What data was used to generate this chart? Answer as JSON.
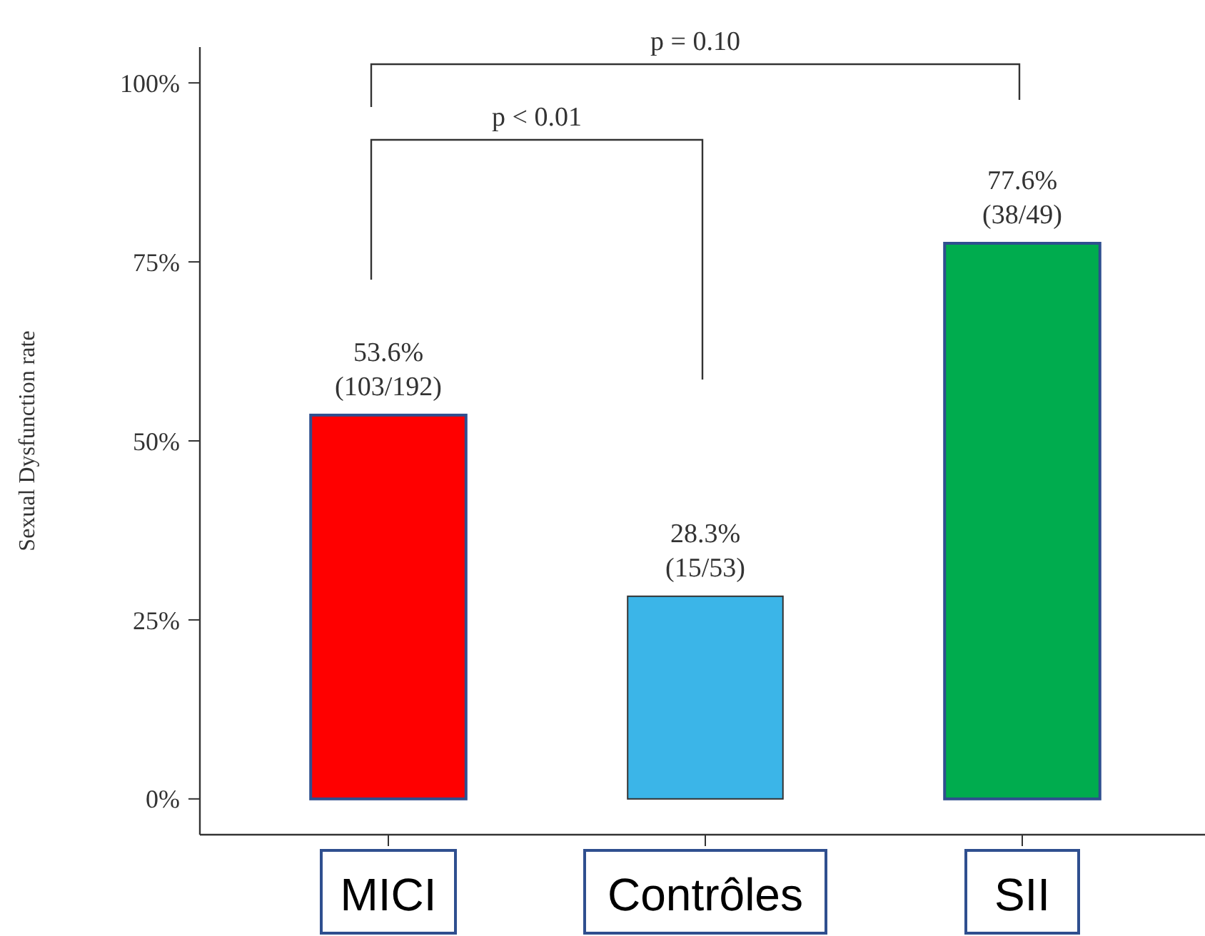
{
  "chart_data": {
    "type": "bar",
    "ylabel": "Sexual Dysfunction rate",
    "categories": [
      "MICI",
      "Contrôles",
      "SII"
    ],
    "values": [
      53.6,
      28.3,
      77.6
    ],
    "colors": [
      "#ff0000",
      "#3bb5e8",
      "#00ac4e"
    ],
    "value_labels": [
      "53.6%\n(103/192)",
      "28.3%\n(15/53)",
      "77.6%\n(38/49)"
    ],
    "ylim": [
      -5,
      105
    ],
    "yticks": [
      {
        "value": 0,
        "label": "0%"
      },
      {
        "value": 25,
        "label": "25%"
      },
      {
        "value": 50,
        "label": "50%"
      },
      {
        "value": 75,
        "label": "75%"
      },
      {
        "value": 100,
        "label": "100%"
      }
    ],
    "annotations": [
      "p = 0.10",
      "p < 0.01"
    ],
    "grid": false
  }
}
